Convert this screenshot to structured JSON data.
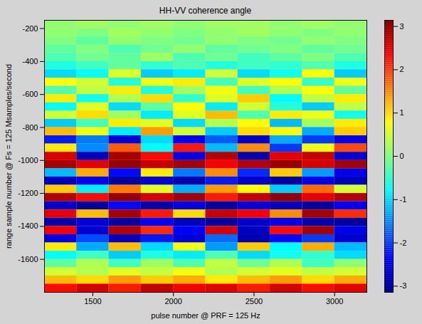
{
  "chart_data": {
    "type": "heatmap",
    "title": "HH-VV coherence angle",
    "x_label": "pulse number @ PRF = 125 Hz",
    "y_label": "range sample number @ Fs = 125 Msamples/second",
    "xlim": [
      1200,
      3200
    ],
    "xticks": [
      1500,
      2000,
      2500,
      3000
    ],
    "ylim": [
      -1800,
      -150
    ],
    "yticks": [
      -1600,
      -1400,
      -1200,
      -1000,
      -800,
      -600,
      -400,
      -200
    ],
    "x_bins": [
      1200,
      1400,
      1600,
      1800,
      2000,
      2200,
      2400,
      2600,
      2800,
      3000,
      3200
    ],
    "y_bins": [
      -150,
      -200,
      -250,
      -300,
      -350,
      -400,
      -450,
      -500,
      -550,
      -600,
      -650,
      -700,
      -750,
      -800,
      -850,
      -900,
      -950,
      -1000,
      -1050,
      -1100,
      -1150,
      -1200,
      -1250,
      -1300,
      -1350,
      -1400,
      -1450,
      -1500,
      -1550,
      -1600,
      -1650,
      -1700,
      -1750,
      -1800
    ],
    "values": [
      [
        0.1,
        0.2,
        0.1,
        0.2,
        0.1,
        0.2,
        0.2,
        0.1,
        0.2,
        0.1
      ],
      [
        0.1,
        0.0,
        0.2,
        0.1,
        0.0,
        0.1,
        0.2,
        0.1,
        0.0,
        0.1
      ],
      [
        0.0,
        -0.2,
        0.1,
        0.0,
        -0.1,
        0.1,
        0.0,
        -0.1,
        0.1,
        0.0
      ],
      [
        -0.2,
        0.0,
        -0.3,
        -0.1,
        0.1,
        -0.2,
        -0.1,
        0.0,
        -0.2,
        -0.1
      ],
      [
        -0.3,
        -0.1,
        -0.2,
        0.2,
        -0.3,
        -0.1,
        -0.4,
        -0.2,
        0.0,
        -0.3
      ],
      [
        -0.6,
        -0.4,
        -0.2,
        -0.5,
        -0.3,
        -0.6,
        -0.4,
        -0.5,
        -0.3,
        -0.6
      ],
      [
        -1.0,
        -0.8,
        0.6,
        -1.1,
        -0.9,
        0.5,
        -1.0,
        -0.7,
        0.8,
        -1.1
      ],
      [
        0.8,
        0.5,
        -0.6,
        0.7,
        0.9,
        -0.4,
        0.6,
        0.8,
        -0.5,
        0.7
      ],
      [
        -0.3,
        0.4,
        0.9,
        -0.6,
        0.2,
        0.7,
        -0.4,
        0.3,
        0.8,
        -0.2
      ],
      [
        0.9,
        -0.7,
        0.3,
        1.0,
        -0.5,
        0.6,
        1.1,
        -0.8,
        0.4,
        0.9
      ],
      [
        -0.8,
        0.6,
        -1.0,
        -0.2,
        0.8,
        -0.9,
        0.5,
        -0.6,
        -1.1,
        0.4
      ],
      [
        0.5,
        1.0,
        0.2,
        -0.9,
        0.6,
        1.2,
        -0.3,
        0.9,
        0.7,
        -0.7
      ],
      [
        -1.1,
        -0.4,
        0.9,
        0.6,
        -1.0,
        0.3,
        0.8,
        -1.2,
        0.2,
        0.9
      ],
      [
        1.2,
        0.7,
        -0.9,
        1.4,
        0.5,
        -1.1,
        1.0,
        0.8,
        -1.3,
        1.1
      ],
      [
        -2.2,
        -1.6,
        -2.6,
        -1.0,
        -2.4,
        -1.8,
        -2.7,
        -1.3,
        -2.0,
        -2.5
      ],
      [
        0.9,
        -1.5,
        1.8,
        -0.8,
        2.2,
        -1.2,
        1.5,
        -2.0,
        0.7,
        1.9
      ],
      [
        2.6,
        -2.8,
        2.9,
        2.3,
        -2.5,
        2.8,
        -2.9,
        2.5,
        2.7,
        -2.6
      ],
      [
        2.9,
        2.5,
        3.0,
        2.7,
        2.9,
        2.4,
        2.8,
        3.0,
        2.6,
        2.9
      ],
      [
        -1.2,
        1.3,
        -2.3,
        0.9,
        -1.6,
        1.5,
        -2.1,
        1.1,
        -1.4,
        -2.5
      ],
      [
        -2.8,
        -2.4,
        -3.0,
        -2.6,
        -2.9,
        -2.2,
        -2.7,
        -3.0,
        -2.5,
        -2.8
      ],
      [
        1.1,
        -0.9,
        1.6,
        0.6,
        -1.3,
        1.4,
        0.8,
        -1.1,
        1.7,
        0.5
      ],
      [
        2.8,
        2.3,
        3.0,
        2.6,
        2.9,
        2.2,
        2.7,
        3.0,
        2.5,
        2.8
      ],
      [
        -2.7,
        -3.0,
        -2.3,
        -2.9,
        -2.5,
        -3.0,
        -2.6,
        -2.8,
        -3.0,
        -2.4
      ],
      [
        2.5,
        1.2,
        2.9,
        2.2,
        1.0,
        2.7,
        2.4,
        1.5,
        2.9,
        2.1
      ],
      [
        -2.9,
        -2.6,
        -3.0,
        -2.4,
        -2.8,
        -3.0,
        -2.7,
        -2.5,
        -2.9,
        -3.0
      ],
      [
        2.4,
        -2.7,
        2.8,
        2.1,
        -2.4,
        2.6,
        -2.8,
        2.3,
        2.9,
        -2.5
      ],
      [
        -2.5,
        -1.9,
        -2.8,
        -2.2,
        -2.6,
        -1.7,
        -2.9,
        -2.3,
        -2.0,
        -2.7
      ],
      [
        0.9,
        -1.3,
        1.2,
        -1.0,
        0.7,
        -1.4,
        1.1,
        -0.8,
        1.3,
        -1.2
      ],
      [
        -0.8,
        -0.4,
        -1.1,
        -0.6,
        -0.9,
        -0.3,
        -1.0,
        -0.7,
        -0.5,
        -1.0
      ],
      [
        -0.2,
        0.3,
        -0.4,
        0.2,
        -0.3,
        0.4,
        -0.1,
        0.3,
        -0.4,
        0.1
      ],
      [
        0.5,
        0.3,
        0.6,
        0.4,
        0.7,
        0.3,
        0.5,
        0.6,
        0.4,
        0.5
      ],
      [
        1.2,
        1.0,
        1.4,
        1.1,
        1.3,
        0.9,
        1.2,
        1.4,
        1.0,
        1.3
      ],
      [
        2.3,
        2.6,
        2.2,
        2.7,
        2.4,
        2.5,
        2.2,
        2.6,
        2.3,
        2.5
      ]
    ],
    "colorbar_lim": [
      -3.1416,
      3.1416
    ],
    "colorbar_ticks": [
      -3,
      -2,
      -1,
      0,
      1,
      2,
      3
    ]
  }
}
